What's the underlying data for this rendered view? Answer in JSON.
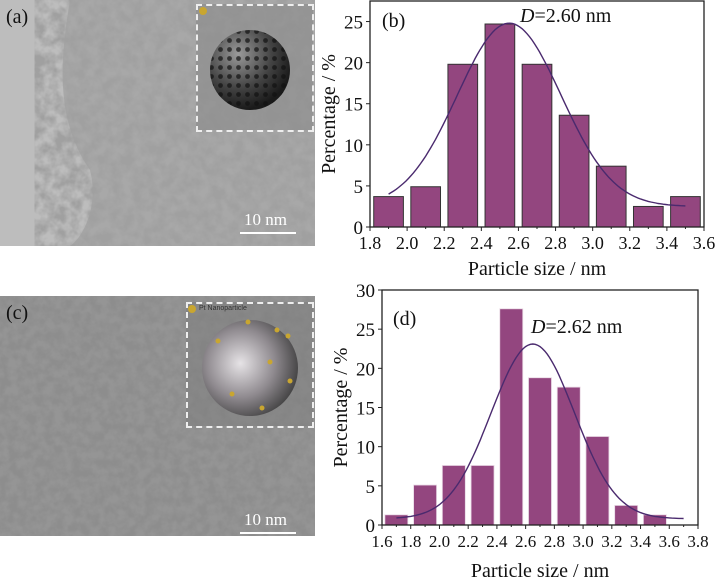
{
  "panels": {
    "a": {
      "label": "(a)",
      "scale_bar": "10 nm"
    },
    "c": {
      "label": "(c)",
      "scale_bar": "10 nm",
      "inset_label": "Pt Nanoparticle"
    }
  },
  "colors": {
    "bar": "#93467f",
    "bar_edge": "#333333",
    "fit": "#4a2a6e"
  },
  "chart_data": [
    {
      "id": "b",
      "type": "bar",
      "panel_label": "(b)",
      "annotation_italic": "D",
      "annotation_rest": "=2.60 nm",
      "xlabel": "Particle size / nm",
      "ylabel": "Percentage / %",
      "xlim": [
        1.8,
        3.6
      ],
      "ylim": [
        0,
        27.5
      ],
      "xticks": [
        "1.8",
        "2.0",
        "2.2",
        "2.4",
        "2.6",
        "2.8",
        "3.0",
        "3.2",
        "3.4",
        "3.6"
      ],
      "yticks": [
        "0",
        "5",
        "10",
        "15",
        "20",
        "25"
      ],
      "x": [
        1.9,
        2.1,
        2.3,
        2.5,
        2.7,
        2.9,
        3.1,
        3.3,
        3.5
      ],
      "values": [
        3.7,
        4.9,
        19.8,
        24.7,
        19.8,
        13.6,
        7.4,
        2.5,
        3.7
      ],
      "fit": {
        "type": "gaussian",
        "y0": 2.5,
        "A": 22.3,
        "xc": 2.55,
        "sigma": 0.28,
        "range": [
          1.9,
          3.5
        ]
      }
    },
    {
      "id": "d",
      "type": "bar",
      "panel_label": "(d)",
      "annotation_italic": "D",
      "annotation_rest": "=2.62 nm",
      "xlabel": "Particle size / nm",
      "ylabel": "Percentage / %",
      "xlim": [
        1.6,
        3.8
      ],
      "ylim": [
        0,
        30
      ],
      "xticks": [
        "1.6",
        "1.8",
        "2.0",
        "2.2",
        "2.4",
        "2.6",
        "2.8",
        "3.0",
        "3.2",
        "3.4",
        "3.6",
        "3.8"
      ],
      "yticks": [
        "0",
        "5",
        "10",
        "15",
        "20",
        "25",
        "30"
      ],
      "x": [
        1.7,
        1.9,
        2.1,
        2.3,
        2.5,
        2.7,
        2.9,
        3.1,
        3.3,
        3.5
      ],
      "values": [
        1.3,
        5.1,
        7.6,
        7.6,
        27.6,
        18.8,
        17.6,
        11.3,
        2.5,
        1.3
      ],
      "fit": {
        "type": "gaussian",
        "y0": 0.8,
        "A": 22.3,
        "xc": 2.65,
        "sigma": 0.29,
        "range": [
          1.7,
          3.7
        ]
      }
    }
  ]
}
